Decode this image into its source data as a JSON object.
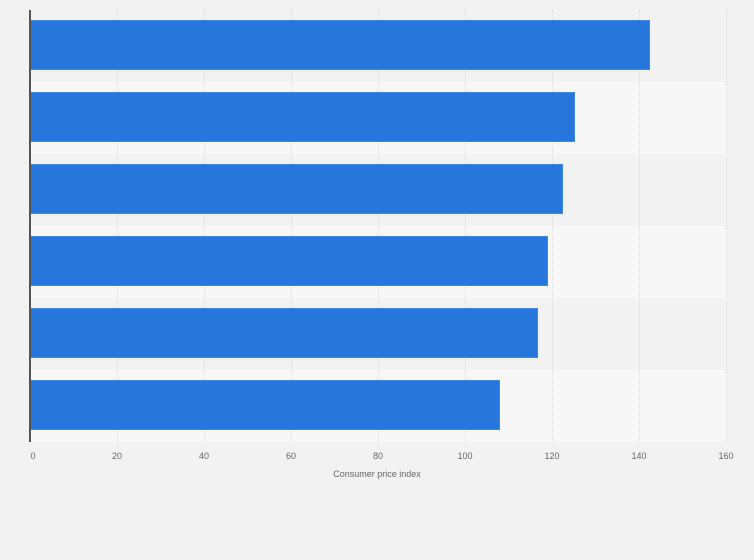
{
  "chart_data": {
    "type": "bar",
    "orientation": "horizontal",
    "title": "",
    "categories": [
      "",
      "",
      "",
      "",
      "",
      ""
    ],
    "values": [
      142.6,
      125.3,
      122.6,
      119.1,
      116.8,
      108.1
    ],
    "xlabel": "Consumer price index",
    "ylabel": "",
    "xlim": [
      0,
      160
    ],
    "xticks": [
      0,
      20,
      40,
      60,
      80,
      100,
      120,
      140,
      160
    ],
    "grid": true,
    "legend": null,
    "bar_color": "#2776dc"
  },
  "axis": {
    "title": "Consumer price index",
    "ticks": [
      "0",
      "20",
      "40",
      "60",
      "80",
      "100",
      "120",
      "140",
      "160"
    ]
  },
  "colors": {
    "bar": "#2776dc",
    "background": "#f2f2f2",
    "band_alt": "#f7f7f7"
  }
}
